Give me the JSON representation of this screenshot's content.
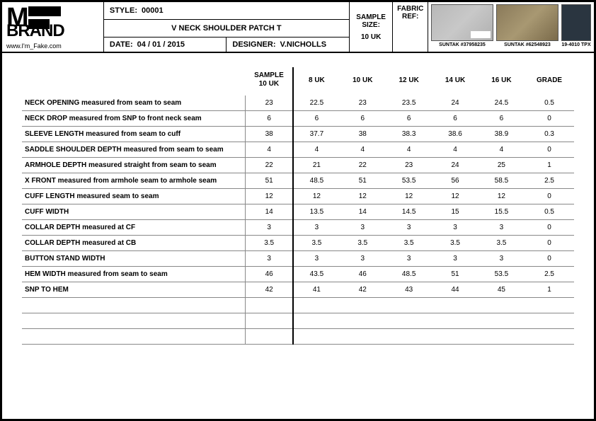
{
  "logo": {
    "brand_text": "BRAND",
    "url": "www.I'm_Fake.com"
  },
  "header": {
    "style_label": "STYLE:",
    "style_value": "00001",
    "title": "V NECK SHOULDER PATCH T",
    "date_label": "DATE:",
    "date_value": "04 / 01 / 2015",
    "designer_label": "DESIGNER:",
    "designer_value": "V.NICHOLLS",
    "sample_size_label": "SAMPLE SIZE:",
    "sample_size_value": "10 UK",
    "fabric_ref_label": "FABRIC REF:"
  },
  "swatches": [
    {
      "label": "SUNTAK  #37958235",
      "color": "#bcbcbc"
    },
    {
      "label": "SUNTAK  #62548923",
      "color": "#8f7f5e"
    },
    {
      "label": "19-4010 TPX",
      "color": "#2a3540"
    }
  ],
  "table": {
    "columns": {
      "sample_header_line1": "SAMPLE",
      "sample_header_line2": "10 UK",
      "sizes": [
        "8 UK",
        "10 UK",
        "12 UK",
        "14 UK",
        "16 UK"
      ],
      "grade": "GRADE"
    },
    "rows": [
      {
        "m": "NECK OPENING measured from seam to seam",
        "s": "23",
        "v": [
          "22.5",
          "23",
          "23.5",
          "24",
          "24.5"
        ],
        "g": "0.5"
      },
      {
        "m": "NECK DROP measured from SNP to front neck seam",
        "s": "6",
        "v": [
          "6",
          "6",
          "6",
          "6",
          "6"
        ],
        "g": "0"
      },
      {
        "m": "SLEEVE LENGTH measured from seam to cuff",
        "s": "38",
        "v": [
          "37.7",
          "38",
          "38.3",
          "38.6",
          "38.9"
        ],
        "g": "0.3"
      },
      {
        "m": "SADDLE SHOULDER DEPTH measured from seam to seam",
        "s": "4",
        "v": [
          "4",
          "4",
          "4",
          "4",
          "4"
        ],
        "g": "0"
      },
      {
        "m": "ARMHOLE DEPTH measured straight from seam to seam",
        "s": "22",
        "v": [
          "21",
          "22",
          "23",
          "24",
          "25"
        ],
        "g": "1"
      },
      {
        "m": "X FRONT measured from armhole seam to armhole seam",
        "s": "51",
        "v": [
          "48.5",
          "51",
          "53.5",
          "56",
          "58.5"
        ],
        "g": "2.5"
      },
      {
        "m": "CUFF LENGTH measured seam to seam",
        "s": "12",
        "v": [
          "12",
          "12",
          "12",
          "12",
          "12"
        ],
        "g": "0"
      },
      {
        "m": "CUFF WIDTH",
        "s": "14",
        "v": [
          "13.5",
          "14",
          "14.5",
          "15",
          "15.5"
        ],
        "g": "0.5"
      },
      {
        "m": "COLLAR DEPTH measured at CF",
        "s": "3",
        "v": [
          "3",
          "3",
          "3",
          "3",
          "3"
        ],
        "g": "0"
      },
      {
        "m": "COLLAR DEPTH measured at CB",
        "s": "3.5",
        "v": [
          "3.5",
          "3.5",
          "3.5",
          "3.5",
          "3.5"
        ],
        "g": "0"
      },
      {
        "m": "BUTTON STAND WIDTH",
        "s": "3",
        "v": [
          "3",
          "3",
          "3",
          "3",
          "3"
        ],
        "g": "0"
      },
      {
        "m": "HEM WIDTH measured from seam to seam",
        "s": "46",
        "v": [
          "43.5",
          "46",
          "48.5",
          "51",
          "53.5"
        ],
        "g": "2.5"
      },
      {
        "m": "SNP TO HEM",
        "s": "42",
        "v": [
          "41",
          "42",
          "43",
          "44",
          "45"
        ],
        "g": "1"
      }
    ],
    "empty_rows": 3
  }
}
